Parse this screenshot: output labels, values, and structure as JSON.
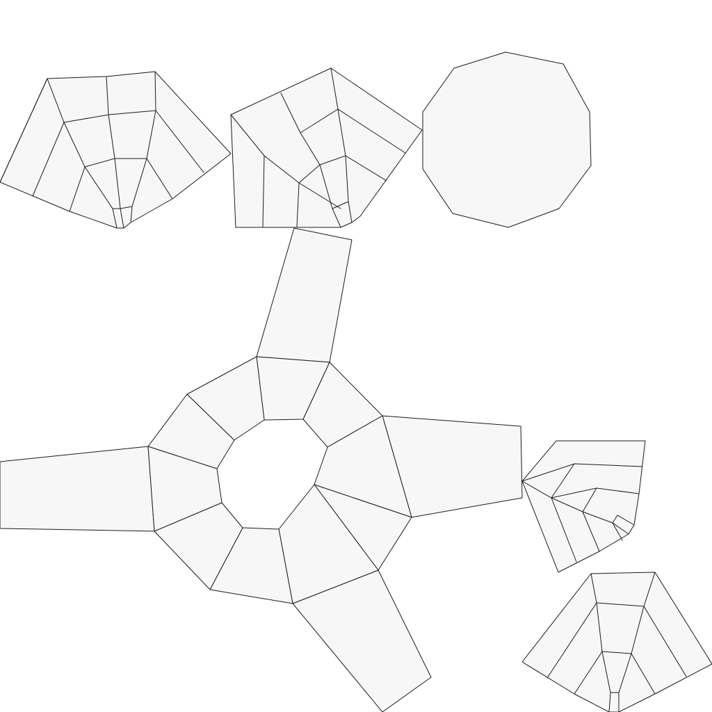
{
  "diagram": {
    "kind": "uv-layout",
    "face_fill": "#f7f7f7",
    "edge_color": "#1a1a1a",
    "background": "#ffffff",
    "islands": [
      "fan-top-left",
      "fan-top-middle",
      "decagon-top-right",
      "ring-with-arms",
      "fan-right-small",
      "fan-bottom-right"
    ]
  }
}
